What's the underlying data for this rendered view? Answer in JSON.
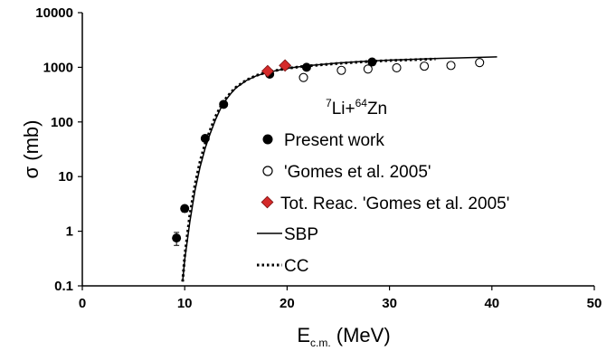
{
  "chart_data": {
    "type": "scatter",
    "xlabel_main": "E",
    "xlabel_sub": "c.m.",
    "xlabel_unit": " (MeV)",
    "ylabel": "σ (mb)",
    "xlim": [
      0,
      50
    ],
    "ylim": [
      0.1,
      10000
    ],
    "yscale": "log",
    "x_ticks": [
      "0",
      "10",
      "20",
      "30",
      "40",
      "50"
    ],
    "y_ticks": [
      "0.1",
      "1",
      "10",
      "100",
      "1000",
      "10000"
    ],
    "grid": false,
    "legend_position": "center",
    "annotation": {
      "mass1": "7",
      "elem1": "Li+",
      "mass2": "64",
      "elem2": "Zn"
    },
    "series": [
      {
        "name": "Present work",
        "marker": "filled-circle",
        "color": "#000000",
        "x": [
          9.2,
          10.0,
          12.0,
          13.8,
          18.3,
          21.9,
          28.3
        ],
        "y": [
          0.75,
          2.6,
          50,
          210,
          750,
          1000,
          1250
        ],
        "err": [
          0.2,
          0.35,
          6,
          25,
          70,
          90,
          100
        ]
      },
      {
        "name": "'Gomes et al. 2005'",
        "marker": "open-circle",
        "color": "#000000",
        "x": [
          21.6,
          25.3,
          27.9,
          30.7,
          33.4,
          36.0,
          38.8
        ],
        "y": [
          650,
          880,
          930,
          980,
          1050,
          1080,
          1220
        ],
        "err": [
          80,
          100,
          110,
          110,
          120,
          120,
          130
        ]
      },
      {
        "name": "Tot. Reac. 'Gomes et al. 2005'",
        "marker": "diamond",
        "color": "#d42a2a",
        "x": [
          18.1,
          19.8
        ],
        "y": [
          850,
          1080
        ]
      },
      {
        "name": "SBP",
        "line": "solid",
        "color": "#000000",
        "x": [
          9.8,
          10,
          10.5,
          11,
          11.5,
          12,
          12.5,
          13,
          13.5,
          14,
          14.5,
          15,
          16,
          17,
          18,
          20,
          22,
          25,
          28,
          30,
          35,
          40.5
        ],
        "y": [
          0.12,
          0.3,
          1.5,
          5.5,
          15,
          33,
          62,
          110,
          175,
          250,
          330,
          420,
          570,
          700,
          800,
          960,
          1070,
          1200,
          1300,
          1350,
          1460,
          1550
        ]
      },
      {
        "name": "CC",
        "line": "dotted",
        "color": "#000000",
        "x": [
          9.8,
          10,
          10.5,
          11,
          11.5,
          12,
          12.5,
          13,
          13.5,
          14,
          14.5,
          15,
          16,
          17,
          18,
          20,
          22,
          25,
          28,
          30,
          34.5
        ],
        "y": [
          0.12,
          0.35,
          2.0,
          7.0,
          19,
          40,
          72,
          125,
          190,
          265,
          345,
          430,
          580,
          710,
          810,
          960,
          1060,
          1180,
          1280,
          1330,
          1420
        ]
      }
    ]
  }
}
